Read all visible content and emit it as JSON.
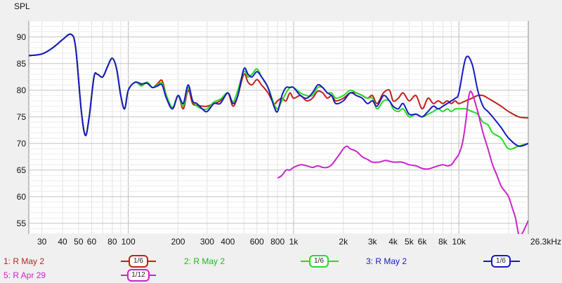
{
  "chart_data": {
    "type": "line",
    "ylabel": "SPL",
    "xscale": "log",
    "xlim": [
      25,
      26300
    ],
    "ylim": [
      53,
      93
    ],
    "grid": true,
    "y_ticks": [
      55,
      60,
      65,
      70,
      75,
      80,
      85,
      90
    ],
    "x_ticks": [
      {
        "v": 30,
        "label": "30"
      },
      {
        "v": 40,
        "label": "40"
      },
      {
        "v": 50,
        "label": "50"
      },
      {
        "v": 60,
        "label": "60"
      },
      {
        "v": 80,
        "label": "80"
      },
      {
        "v": 100,
        "label": "100"
      },
      {
        "v": 200,
        "label": "200"
      },
      {
        "v": 300,
        "label": "300"
      },
      {
        "v": 400,
        "label": "400"
      },
      {
        "v": 600,
        "label": "600"
      },
      {
        "v": 800,
        "label": "800"
      },
      {
        "v": 1000,
        "label": "1k"
      },
      {
        "v": 2000,
        "label": "2k"
      },
      {
        "v": 3000,
        "label": "3k"
      },
      {
        "v": 4000,
        "label": "4k"
      },
      {
        "v": 5000,
        "label": "5k"
      },
      {
        "v": 6000,
        "label": "6k"
      },
      {
        "v": 8000,
        "label": "8k"
      },
      {
        "v": 10000,
        "label": "10k"
      },
      {
        "v": 26300,
        "label": "26.3kHz"
      }
    ],
    "series": [
      {
        "name": "1: R May 2",
        "smoothing": "1/6",
        "color": "#c0201a",
        "x": [
          25,
          30,
          35,
          40,
          45,
          48,
          52,
          55,
          58,
          62,
          65,
          70,
          75,
          80,
          85,
          90,
          95,
          100,
          110,
          120,
          130,
          140,
          150,
          160,
          170,
          185,
          200,
          215,
          230,
          245,
          260,
          280,
          300,
          330,
          360,
          400,
          430,
          460,
          500,
          530,
          560,
          600,
          640,
          700,
          760,
          800,
          850,
          900,
          950,
          1000,
          1100,
          1200,
          1300,
          1400,
          1500,
          1600,
          1700,
          1800,
          2000,
          2200,
          2400,
          2600,
          2800,
          3000,
          3200,
          3500,
          3800,
          4000,
          4300,
          4600,
          5000,
          5500,
          6000,
          6500,
          7000,
          7500,
          8000,
          8500,
          9000,
          9500,
          10000,
          11000,
          12000,
          13000,
          14000,
          15000,
          16000,
          18000,
          20000,
          23000,
          26300
        ],
        "y": [
          86.5,
          86.8,
          88,
          89.5,
          90.5,
          88,
          76,
          71.5,
          75,
          82.5,
          83,
          82.5,
          84.5,
          86,
          84,
          79,
          76.5,
          80,
          81.5,
          81,
          81.5,
          80.5,
          81.2,
          81.8,
          79,
          76.5,
          79,
          76.5,
          80,
          77.5,
          77.2,
          77,
          77,
          77.5,
          78,
          79.5,
          77,
          79,
          83,
          81.5,
          81,
          82,
          81,
          79.5,
          77.5,
          78,
          78.5,
          78,
          79.5,
          78.5,
          79,
          78,
          78.5,
          79.8,
          79.5,
          78.5,
          79,
          78,
          78.5,
          79.5,
          79.5,
          79,
          78.5,
          79,
          77.5,
          79.5,
          80,
          78,
          78.5,
          79.5,
          78,
          79,
          76.5,
          78.5,
          77.5,
          78,
          77.5,
          78,
          77.5,
          78,
          77.5,
          78,
          78.5,
          79,
          79,
          78.5,
          78,
          77,
          76,
          75,
          74.8
        ]
      },
      {
        "name": "2: R May 2",
        "smoothing": "1/6",
        "color": "#22dd22",
        "x": [
          25,
          30,
          35,
          40,
          45,
          48,
          52,
          55,
          58,
          62,
          65,
          70,
          75,
          80,
          85,
          90,
          95,
          100,
          110,
          120,
          130,
          140,
          150,
          160,
          170,
          185,
          200,
          215,
          230,
          245,
          260,
          280,
          300,
          330,
          360,
          400,
          430,
          460,
          500,
          530,
          560,
          600,
          640,
          700,
          760,
          800,
          850,
          900,
          950,
          1000,
          1100,
          1200,
          1300,
          1400,
          1500,
          1600,
          1700,
          1800,
          2000,
          2200,
          2400,
          2600,
          2800,
          3000,
          3200,
          3500,
          3800,
          4000,
          4300,
          4600,
          5000,
          5500,
          6000,
          6500,
          7000,
          7500,
          8000,
          8500,
          9000,
          9500,
          10000,
          11000,
          12000,
          13000,
          14000,
          15000,
          16000,
          18000,
          20000,
          23000,
          26300
        ],
        "y": [
          86.5,
          86.8,
          88,
          89.5,
          90.5,
          88,
          76,
          71.5,
          75,
          82.5,
          83,
          82.5,
          84.5,
          86,
          84,
          79,
          76.5,
          80,
          81.5,
          80.8,
          81.5,
          80.5,
          81,
          81.3,
          79,
          76.8,
          79,
          77,
          80.5,
          78,
          77,
          76.5,
          76.5,
          77.8,
          78.3,
          79.5,
          77.8,
          80,
          83.5,
          82.5,
          83,
          84,
          82.5,
          80.5,
          77.5,
          76.5,
          78,
          79.5,
          80.5,
          80.5,
          79.5,
          79,
          79,
          80.5,
          80.5,
          79.5,
          79.5,
          78.5,
          79,
          80,
          79.5,
          79,
          78.5,
          78.5,
          76.5,
          78,
          78,
          76.5,
          76,
          76.5,
          75,
          75.5,
          75,
          75.5,
          76,
          76.5,
          76,
          76.5,
          76,
          76.5,
          76.5,
          76.5,
          76,
          75.5,
          74,
          73.5,
          72,
          71,
          69,
          69.5,
          70
        ]
      },
      {
        "name": "3: R May 2",
        "smoothing": "1/6",
        "color": "#1818c0",
        "x": [
          25,
          30,
          35,
          40,
          45,
          48,
          52,
          55,
          58,
          62,
          65,
          70,
          75,
          80,
          85,
          90,
          95,
          100,
          110,
          120,
          130,
          140,
          150,
          160,
          170,
          185,
          200,
          215,
          230,
          245,
          260,
          280,
          300,
          330,
          360,
          400,
          430,
          460,
          500,
          530,
          560,
          600,
          640,
          700,
          760,
          800,
          850,
          900,
          950,
          1000,
          1100,
          1200,
          1300,
          1400,
          1500,
          1600,
          1700,
          1800,
          2000,
          2200,
          2400,
          2600,
          2800,
          3000,
          3200,
          3500,
          3800,
          4000,
          4300,
          4600,
          5000,
          5500,
          6000,
          6500,
          7000,
          7500,
          8000,
          8500,
          9000,
          9500,
          10000,
          11000,
          12000,
          13000,
          14000,
          15000,
          16000,
          18000,
          20000,
          23000,
          26300
        ],
        "y": [
          86.5,
          86.8,
          88,
          89.5,
          90.5,
          88,
          76,
          71.5,
          75,
          82.5,
          83,
          82.5,
          84.5,
          86,
          84,
          79,
          76.5,
          80,
          81.5,
          81.2,
          81.3,
          80.5,
          80.8,
          81,
          78.5,
          76.5,
          79,
          77.5,
          81,
          78,
          77.5,
          76.5,
          76,
          77.5,
          77.5,
          79.5,
          77.5,
          79,
          84,
          83,
          82.5,
          83.5,
          82.5,
          80.5,
          77,
          76,
          79,
          80.5,
          80.5,
          80.5,
          79,
          78.5,
          79.5,
          81,
          80.5,
          79.5,
          79,
          77.5,
          78,
          79.5,
          79,
          78.5,
          77.5,
          78,
          77,
          79,
          78,
          77,
          76.5,
          77.5,
          75.5,
          75.5,
          75,
          76,
          77,
          76.5,
          77,
          77.5,
          78,
          78.5,
          79.5,
          86,
          85,
          80,
          77,
          76,
          75,
          73,
          71,
          69.5,
          70
        ]
      },
      {
        "name": "5: R Apr 29",
        "smoothing": "1/12",
        "color": "#cc22cc",
        "x": [
          800,
          850,
          900,
          950,
          1000,
          1100,
          1200,
          1300,
          1400,
          1500,
          1600,
          1700,
          1800,
          1900,
          2000,
          2100,
          2200,
          2400,
          2600,
          2800,
          3000,
          3300,
          3600,
          4000,
          4500,
          5000,
          5500,
          6000,
          6500,
          7000,
          7500,
          8000,
          8500,
          9000,
          9500,
          10000,
          10500,
          11000,
          11500,
          12000,
          13000,
          14000,
          15000,
          16000,
          17000,
          18000,
          19000,
          20000,
          21000,
          22000,
          23000,
          24000,
          25000,
          26300
        ],
        "y": [
          63.5,
          64,
          65,
          65,
          65.5,
          66,
          65.8,
          65.5,
          65.8,
          65.5,
          65.5,
          66,
          67,
          68,
          69,
          69.5,
          69,
          68.5,
          67.5,
          67,
          66.5,
          66.5,
          66.8,
          66.5,
          66.5,
          66,
          65.8,
          65.3,
          65.2,
          65.5,
          65.8,
          66,
          65.8,
          66,
          67,
          68,
          70,
          74,
          79,
          79.5,
          76,
          72,
          69,
          66,
          64,
          62,
          61,
          60,
          58,
          56,
          53,
          53,
          54,
          55.5
        ]
      }
    ]
  }
}
